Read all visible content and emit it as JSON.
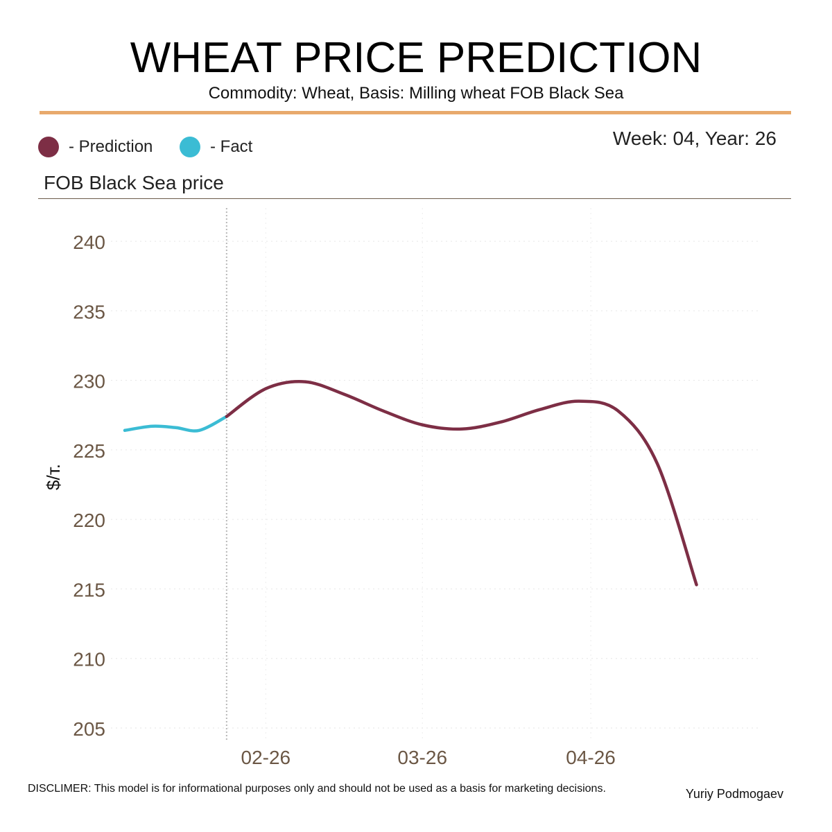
{
  "header": {
    "title": "WHEAT PRICE PREDICTION",
    "subtitle": "Commodity: Wheat, Basis: Milling wheat FOB Black Sea",
    "week_label": "Week: 04, Year: 26"
  },
  "legend": {
    "prediction_label": "- Prediction",
    "fact_label": "- Fact",
    "prediction_color": "#7d2e45",
    "fact_color": "#3bbcd4"
  },
  "panel": {
    "title": "FOB Black Sea price"
  },
  "footer": {
    "disclaimer": "DISCLIMER:  This model is for informational purposes only and should not be used as a basis for marketing decisions.",
    "author": "Yuriy Podmogaev"
  },
  "chart_data": {
    "type": "line",
    "title": "",
    "xlabel": "",
    "ylabel": "$/т.",
    "ylim": [
      205,
      242
    ],
    "yticks": [
      205,
      210,
      215,
      220,
      225,
      230,
      235,
      240
    ],
    "xticks": [
      {
        "label": "02-26",
        "x": 2.6
      },
      {
        "label": "03-26",
        "x": 6.6
      },
      {
        "label": "04-26",
        "x": 10.9
      }
    ],
    "xlim": [
      -1.0,
      14.9
    ],
    "divider_x": 1.6,
    "grid": true,
    "legend_position": "top-left",
    "series": [
      {
        "name": "Fact",
        "color": "#3bbcd4",
        "x": [
          -1.0,
          -0.3,
          0.3,
          0.9,
          1.6
        ],
        "y": [
          226.4,
          226.7,
          226.6,
          226.4,
          227.4
        ]
      },
      {
        "name": "Prediction",
        "color": "#7d2e45",
        "x": [
          1.6,
          2.6,
          3.6,
          4.6,
          5.6,
          6.6,
          7.6,
          8.6,
          9.6,
          10.6,
          11.6,
          12.6,
          13.6,
          14.6
        ],
        "y": [
          227.4,
          229.4,
          229.9,
          229.0,
          227.8,
          226.8,
          226.5,
          227.0,
          227.9,
          228.5,
          227.8,
          224.0,
          215.3,
          215.3
        ]
      }
    ]
  }
}
